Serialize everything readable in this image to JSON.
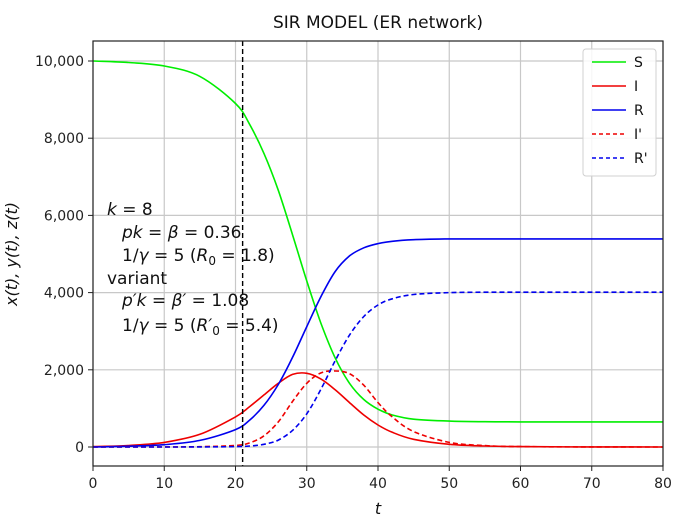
{
  "chart_data": {
    "type": "line",
    "title": "SIR MODEL (ER network)",
    "xlabel": "t",
    "ylabel": "x(t), y(t), z(t)",
    "xlim": [
      0,
      80
    ],
    "ylim": [
      -500,
      10500
    ],
    "xticks": [
      0,
      10,
      20,
      30,
      40,
      50,
      60,
      70,
      80
    ],
    "xtick_labels": [
      "0",
      "10",
      "20",
      "30",
      "40",
      "50",
      "60",
      "70",
      "80"
    ],
    "yticks": [
      0,
      2000,
      4000,
      6000,
      8000,
      10000
    ],
    "ytick_labels": [
      "0",
      "2,000",
      "4,000",
      "6,000",
      "8,000",
      "10,000"
    ],
    "grid": true,
    "legend_position": "upper right",
    "vline": {
      "x": 21,
      "style": "dashed",
      "color": "#000000"
    },
    "x": [
      0,
      5,
      10,
      15,
      20,
      22,
      24,
      26,
      28,
      30,
      32,
      34,
      36,
      38,
      40,
      42,
      45,
      50,
      55,
      60,
      70,
      80
    ],
    "series": [
      {
        "name": "S",
        "color": "#00ee00",
        "style": "solid",
        "values": [
          10000,
          9960,
          9870,
          9600,
          8900,
          8350,
          7600,
          6650,
          5500,
          4300,
          3200,
          2300,
          1650,
          1230,
          980,
          830,
          720,
          670,
          655,
          650,
          650,
          650
        ]
      },
      {
        "name": "I",
        "color": "#ee0000",
        "style": "solid",
        "values": [
          10,
          40,
          120,
          330,
          780,
          1050,
          1350,
          1650,
          1880,
          1910,
          1760,
          1480,
          1150,
          830,
          570,
          380,
          200,
          70,
          25,
          10,
          2,
          0
        ]
      },
      {
        "name": "R",
        "color": "#0000ee",
        "style": "solid",
        "values": [
          0,
          20,
          60,
          170,
          450,
          700,
          1080,
          1620,
          2320,
          3120,
          3900,
          4550,
          4950,
          5160,
          5270,
          5330,
          5370,
          5390,
          5390,
          5390,
          5390,
          5390
        ]
      },
      {
        "name": "I'",
        "color": "#ee0000",
        "style": "dashed",
        "values": [
          0,
          0,
          2,
          8,
          40,
          110,
          290,
          650,
          1180,
          1650,
          1920,
          1970,
          1900,
          1600,
          1150,
          780,
          400,
          120,
          35,
          10,
          2,
          0
        ]
      },
      {
        "name": "R'",
        "color": "#0000ee",
        "style": "dashed",
        "values": [
          0,
          0,
          0,
          2,
          10,
          25,
          70,
          180,
          430,
          860,
          1500,
          2240,
          2900,
          3380,
          3680,
          3840,
          3950,
          4000,
          4010,
          4010,
          4010,
          4010
        ]
      }
    ],
    "annotations": [
      "k = 8",
      "pk = β = 0.36",
      "1/γ = 5 (R₀ = 1.8)",
      "variant",
      "p′k = β′ = 1.08",
      "1/γ = 5  (R′₀ = 5.4)"
    ]
  },
  "legend": {
    "items": [
      {
        "label": "S",
        "color": "#00ee00",
        "dash": ""
      },
      {
        "label": "I",
        "color": "#ee0000",
        "dash": ""
      },
      {
        "label": "R",
        "color": "#0000ee",
        "dash": ""
      },
      {
        "label": "I'",
        "color": "#ee0000",
        "dash": "4,3"
      },
      {
        "label": "R'",
        "color": "#0000ee",
        "dash": "4,3"
      }
    ]
  },
  "annotation_lines": {
    "l1_var": "k",
    "l1_rest": " = 8",
    "l2_a": "pk",
    "l2_b": " = ",
    "l2_c": "β",
    "l2_d": " = 0.36",
    "l3_a": "1/",
    "l3_b": "γ",
    "l3_c": " = 5 (",
    "l3_d": "R",
    "l3_e": "0",
    "l3_f": " = 1.8)",
    "l4": "variant",
    "l5_a": "p′k",
    "l5_b": " = ",
    "l5_c": "β′",
    "l5_d": " = 1.08",
    "l6_a": "1/",
    "l6_b": "γ",
    "l6_c": " = 5  (",
    "l6_d": "R′",
    "l6_e": "0",
    "l6_f": " = 5.4)"
  }
}
